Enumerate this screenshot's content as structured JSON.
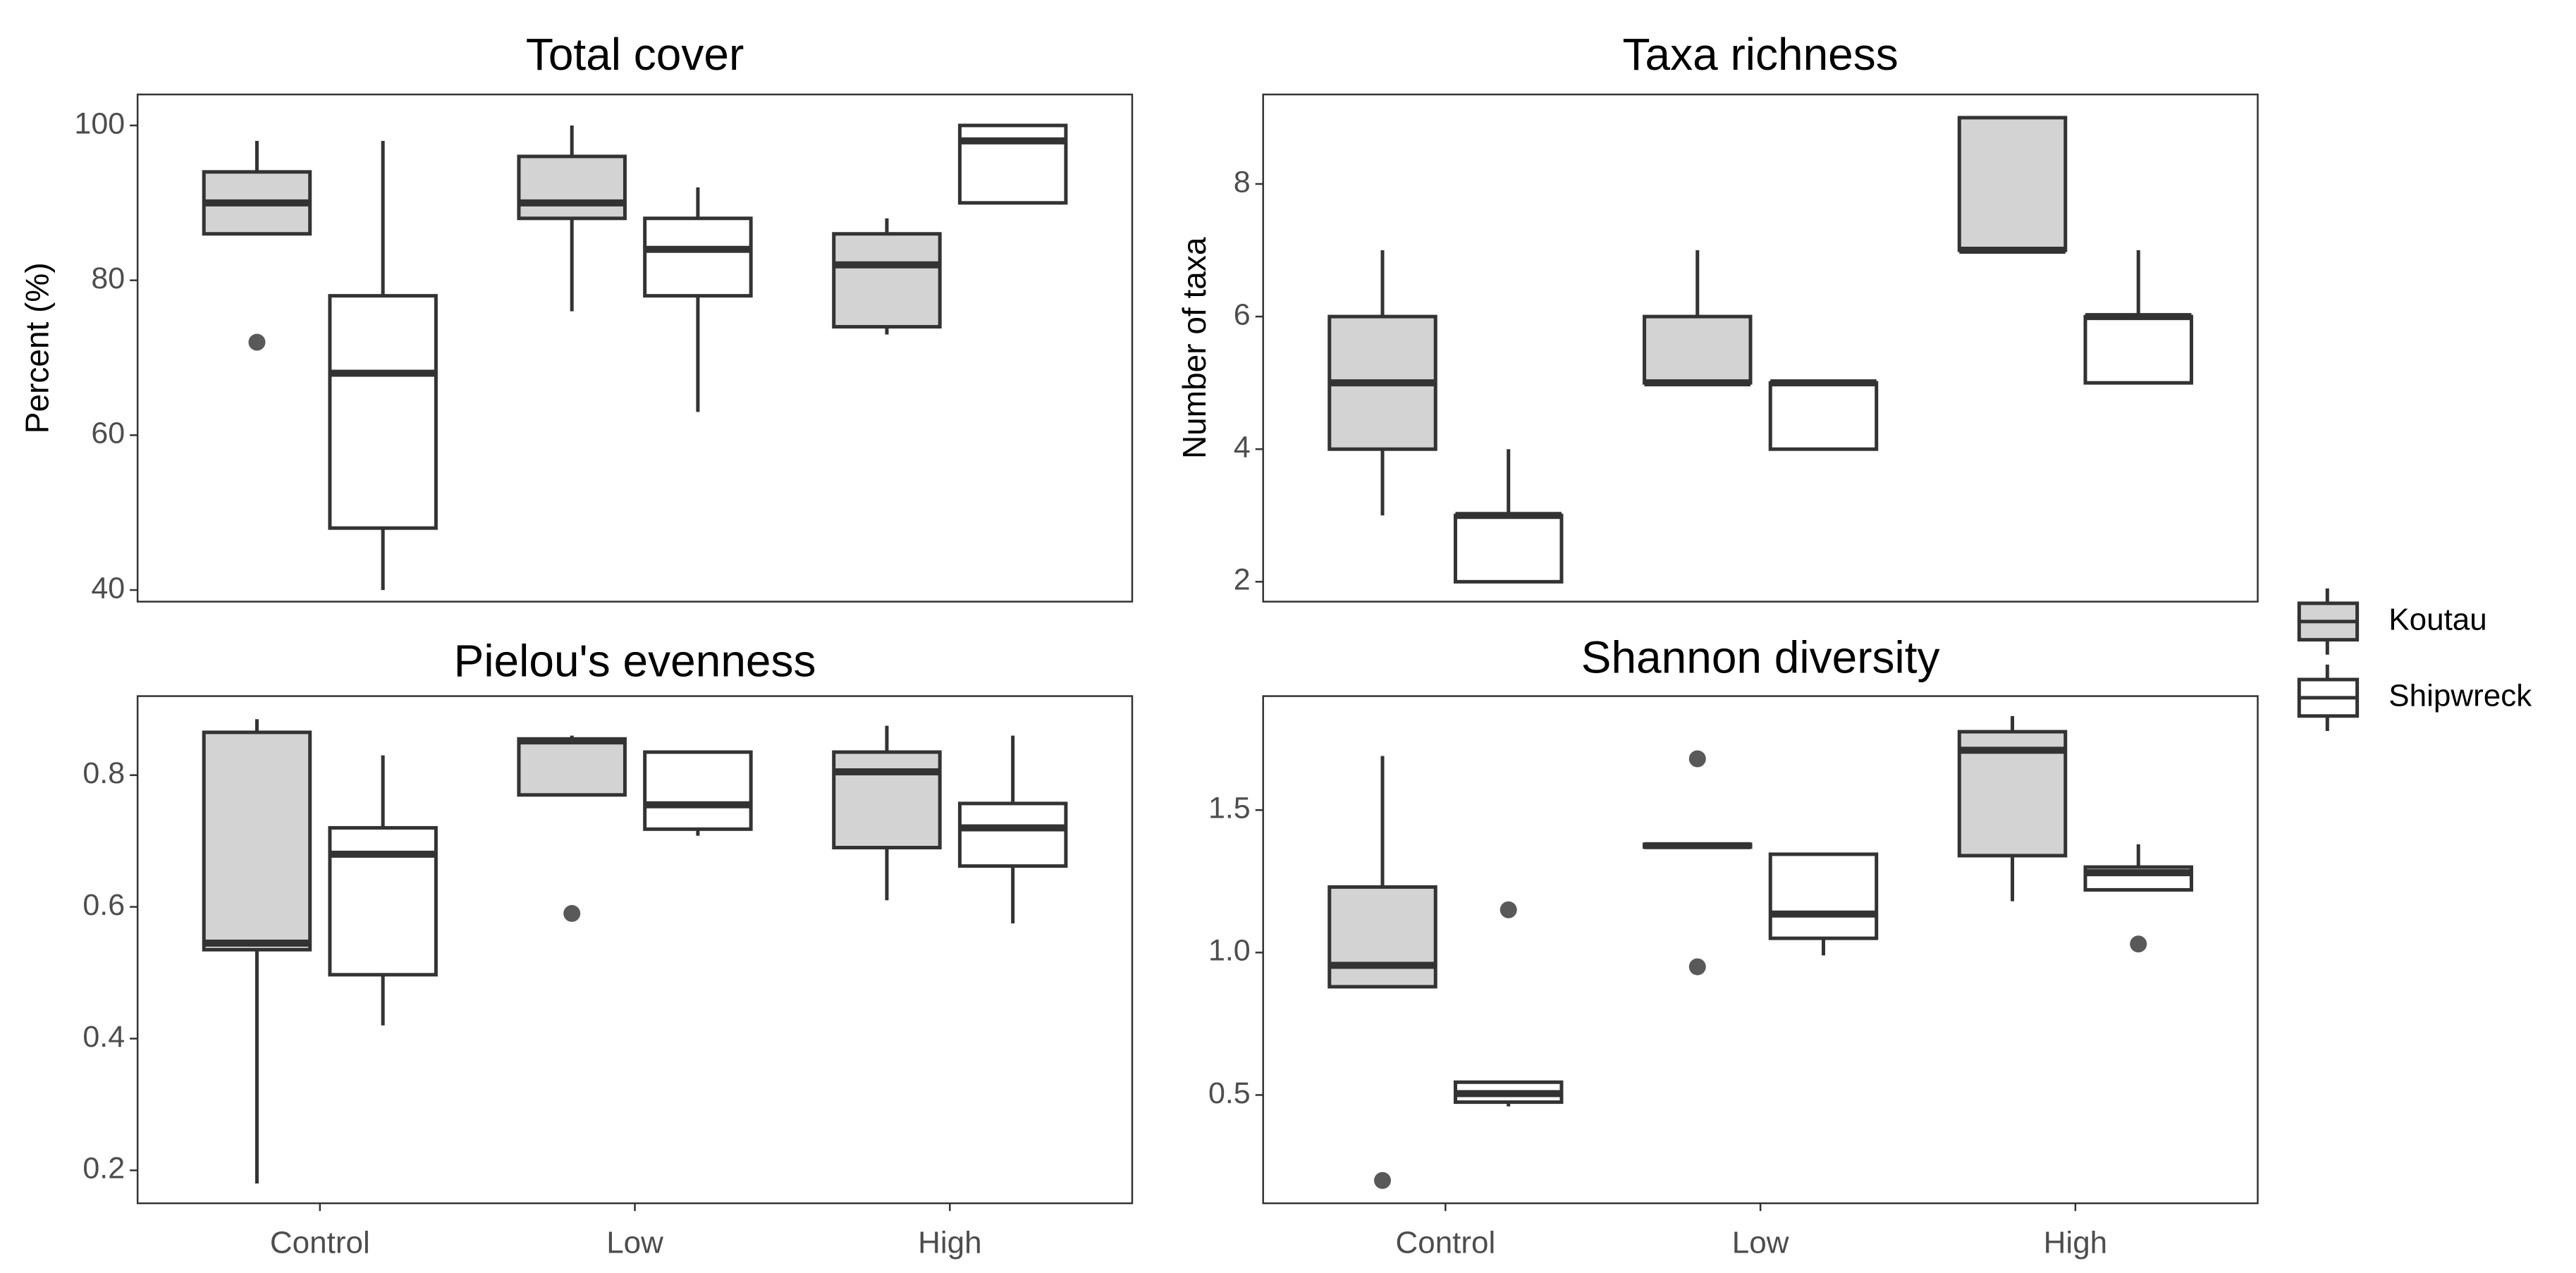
{
  "legend": {
    "items": [
      {
        "label": "Koutau",
        "fill": "#d3d3d3"
      },
      {
        "label": "Shipwreck",
        "fill": "#ffffff"
      }
    ]
  },
  "colors": {
    "box_stroke": "#333333",
    "outlier": "#595959",
    "panel_border": "#333333",
    "tick_text": "#4d4d4d"
  },
  "chart_data": [
    {
      "type": "boxplot",
      "title": "Total cover",
      "ylabel": "Percent (%)",
      "xlabel": "",
      "categories": [
        "Control",
        "Low",
        "High"
      ],
      "ylim": [
        38.5,
        104
      ],
      "yticks": [
        40,
        60,
        80,
        100
      ],
      "show_x_ticks": false,
      "series": [
        {
          "name": "Koutau",
          "boxes": [
            {
              "category": "Control",
              "min": 86,
              "q1": 86,
              "median": 90,
              "q3": 94,
              "max": 98,
              "outliers": [
                72
              ]
            },
            {
              "category": "Low",
              "min": 76,
              "q1": 88,
              "median": 90,
              "q3": 96,
              "max": 100,
              "outliers": []
            },
            {
              "category": "High",
              "min": 73,
              "q1": 74,
              "median": 82,
              "q3": 86,
              "max": 88,
              "outliers": []
            }
          ]
        },
        {
          "name": "Shipwreck",
          "boxes": [
            {
              "category": "Control",
              "min": 40,
              "q1": 48,
              "median": 68,
              "q3": 78,
              "max": 98,
              "outliers": []
            },
            {
              "category": "Low",
              "min": 63,
              "q1": 78,
              "median": 84,
              "q3": 88,
              "max": 92,
              "outliers": []
            },
            {
              "category": "High",
              "min": 90,
              "q1": 90,
              "median": 98,
              "q3": 100,
              "max": 100,
              "outliers": []
            }
          ]
        }
      ]
    },
    {
      "type": "boxplot",
      "title": "Taxa richness",
      "ylabel": "Number of taxa",
      "xlabel": "",
      "categories": [
        "Control",
        "Low",
        "High"
      ],
      "ylim": [
        1.7,
        9.35
      ],
      "yticks": [
        2,
        4,
        6,
        8
      ],
      "show_x_ticks": false,
      "series": [
        {
          "name": "Koutau",
          "boxes": [
            {
              "category": "Control",
              "min": 3,
              "q1": 4,
              "median": 5,
              "q3": 6,
              "max": 7,
              "outliers": []
            },
            {
              "category": "Low",
              "min": 5,
              "q1": 5,
              "median": 5,
              "q3": 6,
              "max": 7,
              "outliers": []
            },
            {
              "category": "High",
              "min": 7,
              "q1": 7,
              "median": 7,
              "q3": 9,
              "max": 9,
              "outliers": []
            }
          ]
        },
        {
          "name": "Shipwreck",
          "boxes": [
            {
              "category": "Control",
              "min": 2,
              "q1": 2,
              "median": 3,
              "q3": 3,
              "max": 4,
              "outliers": []
            },
            {
              "category": "Low",
              "min": 4,
              "q1": 4,
              "median": 5,
              "q3": 5,
              "max": 5,
              "outliers": []
            },
            {
              "category": "High",
              "min": 5,
              "q1": 5,
              "median": 6,
              "q3": 6,
              "max": 7,
              "outliers": []
            }
          ]
        }
      ]
    },
    {
      "type": "boxplot",
      "title": "Pielou's evenness",
      "ylabel": "",
      "xlabel": "",
      "categories": [
        "Control",
        "Low",
        "High"
      ],
      "ylim": [
        0.15,
        0.92
      ],
      "yticks": [
        0.2,
        0.4,
        0.6,
        0.8
      ],
      "show_x_ticks": true,
      "series": [
        {
          "name": "Koutau",
          "boxes": [
            {
              "category": "Control",
              "min": 0.18,
              "q1": 0.535,
              "median": 0.545,
              "q3": 0.865,
              "max": 0.885,
              "outliers": []
            },
            {
              "category": "Low",
              "min": 0.77,
              "q1": 0.77,
              "median": 0.852,
              "q3": 0.855,
              "max": 0.86,
              "outliers": [
                0.59
              ]
            },
            {
              "category": "High",
              "min": 0.61,
              "q1": 0.69,
              "median": 0.805,
              "q3": 0.835,
              "max": 0.875,
              "outliers": []
            }
          ]
        },
        {
          "name": "Shipwreck",
          "boxes": [
            {
              "category": "Control",
              "min": 0.42,
              "q1": 0.497,
              "median": 0.68,
              "q3": 0.72,
              "max": 0.83,
              "outliers": []
            },
            {
              "category": "Low",
              "min": 0.708,
              "q1": 0.718,
              "median": 0.755,
              "q3": 0.835,
              "max": 0.835,
              "outliers": []
            },
            {
              "category": "High",
              "min": 0.575,
              "q1": 0.662,
              "median": 0.72,
              "q3": 0.757,
              "max": 0.86,
              "outliers": []
            }
          ]
        }
      ]
    },
    {
      "type": "boxplot",
      "title": "Shannon diversity",
      "ylabel": "",
      "xlabel": "",
      "categories": [
        "Control",
        "Low",
        "High"
      ],
      "ylim": [
        0.12,
        1.9
      ],
      "yticks": [
        0.5,
        1.0,
        1.5
      ],
      "yticklabels": [
        "0.5",
        "1.0",
        "1.5"
      ],
      "show_x_ticks": true,
      "series": [
        {
          "name": "Koutau",
          "boxes": [
            {
              "category": "Control",
              "min": 0.88,
              "q1": 0.88,
              "median": 0.955,
              "q3": 1.23,
              "max": 1.69,
              "outliers": [
                0.2
              ]
            },
            {
              "category": "Low",
              "min": 1.37,
              "q1": 1.37,
              "median": 1.375,
              "q3": 1.38,
              "max": 1.38,
              "outliers": [
                1.68,
                0.95
              ]
            },
            {
              "category": "High",
              "min": 1.18,
              "q1": 1.34,
              "median": 1.71,
              "q3": 1.775,
              "max": 1.83,
              "outliers": []
            }
          ]
        },
        {
          "name": "Shipwreck",
          "boxes": [
            {
              "category": "Control",
              "min": 0.46,
              "q1": 0.475,
              "median": 0.505,
              "q3": 0.545,
              "max": 0.545,
              "outliers": [
                1.15
              ]
            },
            {
              "category": "Low",
              "min": 0.99,
              "q1": 1.05,
              "median": 1.135,
              "q3": 1.345,
              "max": 1.345,
              "outliers": []
            },
            {
              "category": "High",
              "min": 1.22,
              "q1": 1.22,
              "median": 1.28,
              "q3": 1.3,
              "max": 1.38,
              "outliers": [
                1.03
              ]
            }
          ]
        }
      ]
    }
  ]
}
